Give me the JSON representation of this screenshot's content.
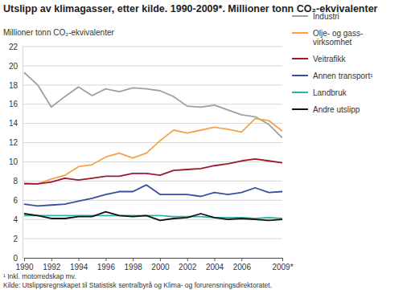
{
  "chart_data": {
    "type": "line",
    "title": "Utslipp av klimagasser, etter kilde. 1990-2009*. Millioner tonn CO₂-ekvivalenter",
    "y_label": "Millioner tonn CO₂-ekvivalenter",
    "footnote": "¹ Inkl. motorredskap mv.",
    "source": "Kilde: Utslippsregnskapet til Statistisk sentralbyrå og Klima- og forurensningsdirektoratet.",
    "x": [
      1990,
      1991,
      1992,
      1993,
      1994,
      1995,
      1996,
      1997,
      1998,
      1999,
      2000,
      2001,
      2002,
      2003,
      2004,
      2005,
      2006,
      2007,
      2008,
      2009
    ],
    "xlim": [
      1990,
      2009
    ],
    "xticks": [
      1990,
      1992,
      1994,
      1996,
      1998,
      2000,
      2002,
      2004,
      2006,
      {
        "value": 2009,
        "label": "2009*"
      }
    ],
    "ylim": [
      0,
      22
    ],
    "yticks": [
      0,
      2,
      4,
      6,
      8,
      10,
      12,
      14,
      16,
      18,
      20,
      22
    ],
    "grid": true,
    "legend": "right",
    "series": [
      {
        "name": "Industri",
        "color": "#a0a0a0",
        "values": [
          19.3,
          18.0,
          15.7,
          16.8,
          17.8,
          16.9,
          17.6,
          17.3,
          17.7,
          17.6,
          17.4,
          16.8,
          15.8,
          15.7,
          15.9,
          15.4,
          14.9,
          14.7,
          13.9,
          12.5
        ]
      },
      {
        "name": "Olje- og gass-\nvirksomhet",
        "color": "#f7a14a",
        "values": [
          7.8,
          7.7,
          8.2,
          8.6,
          9.5,
          9.7,
          10.5,
          10.9,
          10.4,
          10.9,
          12.2,
          13.3,
          13.0,
          13.3,
          13.6,
          13.4,
          13.1,
          14.5,
          14.3,
          13.2
        ]
      },
      {
        "name": "Veitrafikk",
        "color": "#9b1b30",
        "values": [
          7.7,
          7.7,
          7.9,
          8.3,
          8.1,
          8.3,
          8.5,
          8.5,
          8.8,
          8.8,
          8.6,
          9.1,
          9.2,
          9.3,
          9.6,
          9.8,
          10.1,
          10.3,
          10.1,
          9.9
        ]
      },
      {
        "name": "Annen transport¹",
        "color": "#3a4ea0",
        "values": [
          5.6,
          5.4,
          5.5,
          5.6,
          5.9,
          6.2,
          6.6,
          6.9,
          6.9,
          7.6,
          6.6,
          6.6,
          6.6,
          6.4,
          6.8,
          6.6,
          6.8,
          7.3,
          6.8,
          6.9
        ]
      },
      {
        "name": "Landbruk",
        "color": "#2ab3a6",
        "values": [
          4.4,
          4.4,
          4.4,
          4.4,
          4.4,
          4.4,
          4.4,
          4.4,
          4.4,
          4.4,
          4.4,
          4.3,
          4.3,
          4.3,
          4.2,
          4.2,
          4.2,
          4.1,
          4.2,
          4.1
        ]
      },
      {
        "name": "Andre utslipp",
        "color": "#111111",
        "values": [
          4.6,
          4.4,
          4.1,
          4.1,
          4.3,
          4.3,
          4.8,
          4.4,
          4.3,
          4.4,
          3.9,
          4.1,
          4.2,
          4.6,
          4.2,
          4.0,
          4.1,
          4.0,
          3.9,
          4.0
        ]
      }
    ]
  }
}
